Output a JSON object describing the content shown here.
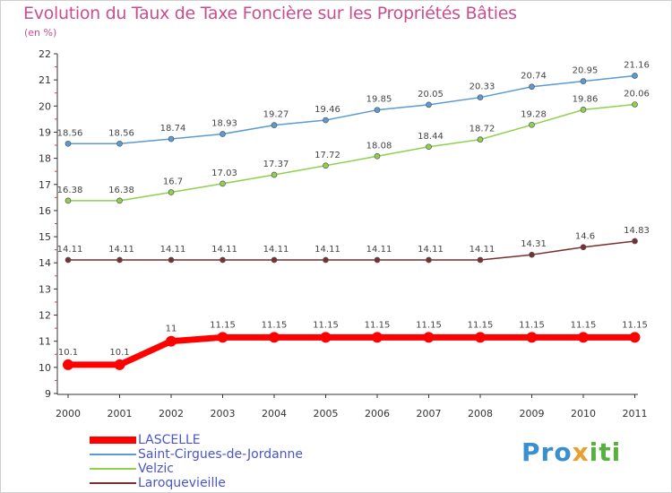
{
  "chart_data": {
    "type": "line",
    "title": "Evolution du Taux de Taxe Foncière sur les Propriétés Bâties",
    "subtitle": "(en %)",
    "xlabel": "",
    "ylabel": "(en %)",
    "ylim": [
      9,
      22
    ],
    "yticks": [
      9,
      10,
      11,
      12,
      13,
      14,
      15,
      16,
      17,
      18,
      19,
      20,
      21,
      22
    ],
    "categories": [
      "2000",
      "2001",
      "2002",
      "2003",
      "2004",
      "2005",
      "2006",
      "2007",
      "2008",
      "2009",
      "2010",
      "2011"
    ],
    "grid": false,
    "series": [
      {
        "name": "Saint-Cirgues-de-Jordanne",
        "color": "#5b9bd5",
        "values": [
          18.56,
          18.56,
          18.74,
          18.93,
          19.27,
          19.46,
          19.85,
          20.05,
          20.33,
          20.74,
          20.95,
          21.16
        ],
        "labels": [
          "18.56",
          "18.56",
          "18.74",
          "18.93",
          "19.27",
          "19.46",
          "19.85",
          "20.05",
          "20.33",
          "20.74",
          "20.95",
          "21.16"
        ]
      },
      {
        "name": "Velzic",
        "color": "#8fd14f",
        "values": [
          16.38,
          16.38,
          16.7,
          17.03,
          17.37,
          17.72,
          18.08,
          18.44,
          18.72,
          19.28,
          19.86,
          20.06
        ],
        "labels": [
          "16.38",
          "16.38",
          "16.7",
          "17.03",
          "17.37",
          "17.72",
          "18.08",
          "18.44",
          "18.72",
          "19.28",
          "19.86",
          "20.06"
        ]
      },
      {
        "name": "Laroquevieille",
        "color": "#7b2f2f",
        "values": [
          14.11,
          14.11,
          14.11,
          14.11,
          14.11,
          14.11,
          14.11,
          14.11,
          14.11,
          14.31,
          14.6,
          14.83
        ],
        "labels": [
          "14.11",
          "14.11",
          "14.11",
          "14.11",
          "14.11",
          "14.11",
          "14.11",
          "14.11",
          "14.11",
          "14.31",
          "14.6",
          "14.83"
        ]
      },
      {
        "name": "LASCELLE",
        "color": "#ff0000",
        "highlight": true,
        "values": [
          10.1,
          10.1,
          11,
          11.15,
          11.15,
          11.15,
          11.15,
          11.15,
          11.15,
          11.15,
          11.15,
          11.15
        ],
        "labels": [
          "10.1",
          "10.1",
          "11",
          "11.15",
          "11.15",
          "11.15",
          "11.15",
          "11.15",
          "11.15",
          "11.15",
          "11.15",
          "11.15"
        ]
      }
    ]
  },
  "legend": [
    {
      "name": "LASCELLE",
      "color": "#ff0000",
      "highlight": true
    },
    {
      "name": "Saint-Cirgues-de-Jordanne",
      "color": "#5b9bd5"
    },
    {
      "name": "Velzic",
      "color": "#8fd14f"
    },
    {
      "name": "Laroquevieille",
      "color": "#7b2f2f"
    }
  ],
  "logo": {
    "part1": "Pro",
    "part2": "x",
    "part3": "iti"
  }
}
